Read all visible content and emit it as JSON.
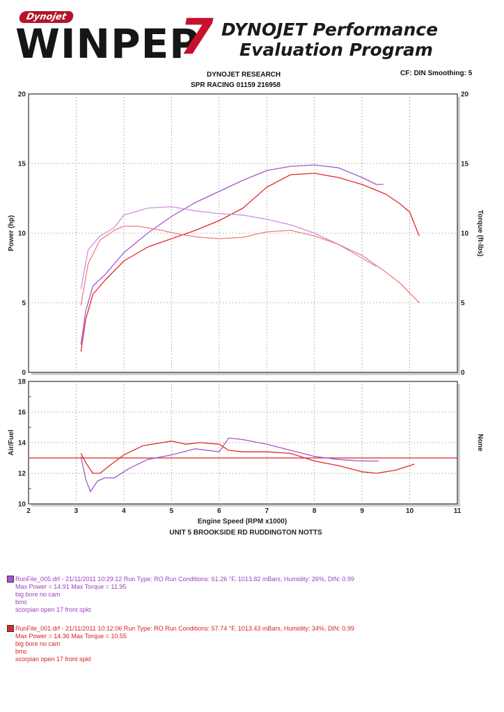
{
  "header": {
    "logo_tag": "Dynojet",
    "logo_word": "WINPEP",
    "logo_number": "7",
    "program_title_line1": "DYNOJET Performance",
    "program_title_line2": "Evaluation Program",
    "company_line1": "DYNOJET RESEARCH",
    "company_line2": "SPR RACING  01159 216958",
    "settings": "CF: DIN  Smoothing: 5"
  },
  "colors": {
    "run_005": "#a855c8",
    "run_001": "#e02828",
    "afr_reference": "#d82626",
    "grid": "#888888"
  },
  "chart_data": [
    {
      "type": "line",
      "xlabel": "",
      "ylabel": "Power (hp)",
      "ylabel_right": "Torque (ft-lbs)",
      "xlim": [
        2,
        11
      ],
      "ylim": [
        0,
        20
      ],
      "ylim_right": [
        0,
        20
      ],
      "yticks": [
        0,
        5,
        10,
        15,
        20
      ],
      "grid": true,
      "series": [
        {
          "name": "RunFile_005 Power",
          "color": "#a855c8",
          "x": [
            3.1,
            3.2,
            3.35,
            3.6,
            4.0,
            4.5,
            5.0,
            5.5,
            6.0,
            6.5,
            7.0,
            7.5,
            8.0,
            8.5,
            9.0,
            9.3,
            9.45
          ],
          "y": [
            2.0,
            4.4,
            6.2,
            7.0,
            8.6,
            10.0,
            11.2,
            12.2,
            13.0,
            13.8,
            14.5,
            14.8,
            14.9,
            14.7,
            14.0,
            13.5,
            13.5
          ]
        },
        {
          "name": "RunFile_001 Power",
          "color": "#e02828",
          "x": [
            3.1,
            3.2,
            3.35,
            3.6,
            4.0,
            4.5,
            5.0,
            5.5,
            6.0,
            6.5,
            7.0,
            7.5,
            8.0,
            8.5,
            9.0,
            9.5,
            9.8,
            10.0,
            10.2
          ],
          "y": [
            1.5,
            3.8,
            5.6,
            6.6,
            8.0,
            9.0,
            9.6,
            10.2,
            10.9,
            11.8,
            13.3,
            14.2,
            14.3,
            14.0,
            13.5,
            12.8,
            12.1,
            11.5,
            9.8
          ]
        },
        {
          "name": "RunFile_005 Torque",
          "color": "#c98fe0",
          "x": [
            3.1,
            3.25,
            3.5,
            3.8,
            4.0,
            4.5,
            5.0,
            5.5,
            6.0,
            6.5,
            7.0,
            7.5,
            8.0,
            8.5,
            9.0,
            9.3
          ],
          "y": [
            6.0,
            8.8,
            9.8,
            10.4,
            11.3,
            11.8,
            11.9,
            11.6,
            11.4,
            11.3,
            11.0,
            10.6,
            10.0,
            9.2,
            8.2,
            7.6
          ]
        },
        {
          "name": "RunFile_001 Torque",
          "color": "#f27c7c",
          "x": [
            3.1,
            3.25,
            3.5,
            3.8,
            4.0,
            4.3,
            4.8,
            5.2,
            5.6,
            6.0,
            6.5,
            7.0,
            7.5,
            8.0,
            8.5,
            9.0,
            9.5,
            9.8,
            10.2
          ],
          "y": [
            4.8,
            7.8,
            9.5,
            10.2,
            10.5,
            10.5,
            10.2,
            9.9,
            9.7,
            9.6,
            9.7,
            10.1,
            10.2,
            9.8,
            9.2,
            8.4,
            7.2,
            6.4,
            5.0
          ]
        }
      ]
    },
    {
      "type": "line",
      "xlabel": "Engine Speed (RPM x1000)",
      "ylabel": "Air/Fuel",
      "ylabel_right": "None",
      "xlim": [
        2,
        11
      ],
      "ylim": [
        10,
        18
      ],
      "xticks": [
        2,
        3,
        4,
        5,
        6,
        7,
        8,
        9,
        10,
        11
      ],
      "yticks": [
        10,
        12,
        14,
        16,
        18
      ],
      "reference_line": 13.0,
      "grid": true,
      "series": [
        {
          "name": "RunFile_005 Air/Fuel",
          "color": "#a855c8",
          "x": [
            3.1,
            3.2,
            3.3,
            3.45,
            3.6,
            3.8,
            4.1,
            4.5,
            5.0,
            5.5,
            6.0,
            6.2,
            6.5,
            7.0,
            7.5,
            8.0,
            8.5,
            9.0,
            9.35
          ],
          "y": [
            13.1,
            11.6,
            10.8,
            11.5,
            11.7,
            11.7,
            12.3,
            12.9,
            13.2,
            13.6,
            13.4,
            14.3,
            14.2,
            13.9,
            13.5,
            13.1,
            12.9,
            12.8,
            12.8
          ]
        },
        {
          "name": "RunFile_001 Air/Fuel",
          "color": "#e02828",
          "x": [
            3.1,
            3.2,
            3.35,
            3.5,
            3.7,
            4.0,
            4.4,
            5.0,
            5.3,
            5.6,
            6.0,
            6.2,
            6.5,
            7.0,
            7.5,
            8.0,
            8.5,
            9.0,
            9.3,
            9.7,
            10.1
          ],
          "y": [
            13.3,
            12.7,
            12.0,
            12.0,
            12.5,
            13.2,
            13.8,
            14.1,
            13.9,
            14.0,
            13.9,
            13.5,
            13.4,
            13.4,
            13.3,
            12.8,
            12.5,
            12.1,
            12.0,
            12.2,
            12.6
          ]
        }
      ]
    }
  ],
  "location": "UNIT 5 BROOKSIDE RD RUDDINGTON NOTTS",
  "runs": [
    {
      "color": "#a855c8",
      "summary": "RunFile_005.drf - 21/11/2011 10:29:12  Run Type: RO  Run Conditions: 61.26 °F, 1013.82 mBars,  Humidity:  26%, DIN: 0.99",
      "max_line": "Max Power = 14.91  Max Torque = 11.95",
      "note1": "big bore no cam",
      "note2": "bmc",
      "note3": "scorpian open 17 front spkt"
    },
    {
      "color": "#e02828",
      "summary": "RunFile_001.drf - 21/11/2011 10:12:06  Run Type: RO  Run Conditions: 57.74 °F, 1013.43 mBars,  Humidity:  34%, DIN: 0.99",
      "max_line": "Max Power = 14.36  Max Torque = 10.55",
      "note1": "big bore no cam",
      "note2": "bmc",
      "note3": "scorpian open 17 front spkt"
    }
  ]
}
